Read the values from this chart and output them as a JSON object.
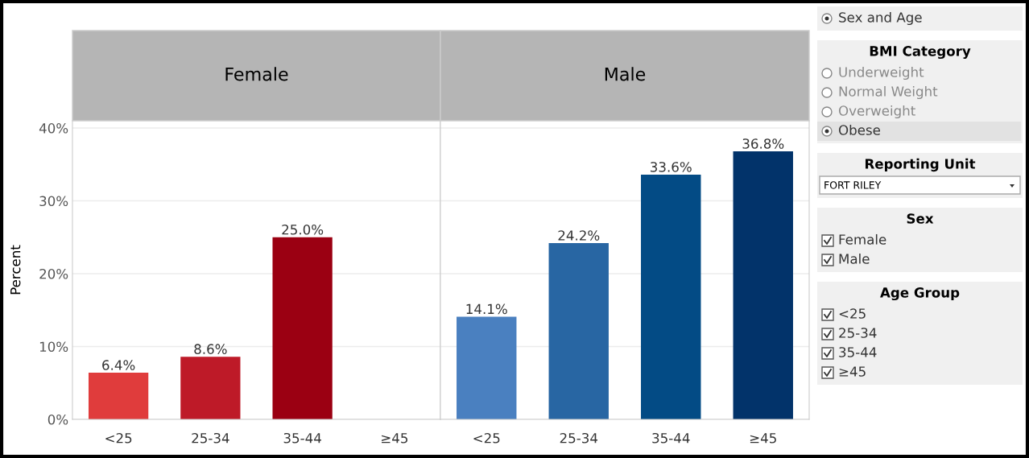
{
  "chart_data": [
    {
      "type": "bar",
      "title": "Female",
      "ylabel": "Percent",
      "categories": [
        "<25",
        "25-34",
        "35-44",
        "≥45"
      ],
      "values": [
        6.4,
        8.6,
        25.0,
        null
      ],
      "colors": [
        "#e03c3c",
        "#be1a28",
        "#9b0012",
        "#9b0012"
      ],
      "value_labels": [
        "6.4%",
        "8.6%",
        "25.0%",
        null
      ],
      "ylim": [
        0,
        41
      ],
      "yticks": [
        {
          "value": 0,
          "label": "0%"
        },
        {
          "value": 10,
          "label": "10%"
        },
        {
          "value": 20,
          "label": "20%"
        },
        {
          "value": 30,
          "label": "30%"
        },
        {
          "value": 40,
          "label": "40%"
        }
      ],
      "grid": "y"
    },
    {
      "type": "bar",
      "title": "Male",
      "categories": [
        "<25",
        "25-34",
        "35-44",
        "≥45"
      ],
      "values": [
        14.1,
        24.2,
        33.6,
        36.8
      ],
      "colors": [
        "#4a80c0",
        "#2866a3",
        "#034b85",
        "#02336a"
      ],
      "value_labels": [
        "14.1%",
        "24.2%",
        "33.6%",
        "36.8%"
      ],
      "ylim": [
        0,
        41
      ],
      "yticks": [
        0,
        10,
        20,
        30,
        40
      ],
      "grid": "y",
      "tick_labels": "x"
    },
    {
      "type": "other",
      "annotations": [
        "Sex and Age"
      ]
    },
    {
      "type": "other",
      "title": "BMI Category",
      "annotations": [
        "Underweight",
        "Normal Weight",
        "Overweight",
        "Obese"
      ]
    },
    {
      "type": "other",
      "title": "Reporting Unit",
      "annotations": [
        "FORT RILEY"
      ]
    },
    {
      "type": "other",
      "title": "Sex",
      "annotations": [
        "Female",
        "Male"
      ]
    },
    {
      "type": "other",
      "title": "Age Group",
      "annotations": [
        "<25",
        "25-34",
        "35-44",
        "≥45"
      ]
    }
  ]
}
